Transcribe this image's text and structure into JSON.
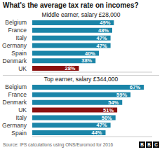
{
  "chart_data": [
    {
      "type": "bar",
      "orientation": "horizontal",
      "title": "What's the average tax rate on incomes?",
      "subtitle": "Middle earner, salary £28,000",
      "categories": [
        "Belgium",
        "France",
        "Italy",
        "Germany",
        "Spain",
        "Denmark",
        "UK"
      ],
      "values": [
        49,
        48,
        47,
        47,
        40,
        38,
        28
      ],
      "value_labels": [
        "49%",
        "48%",
        "47%",
        "47%",
        "40%",
        "38%",
        "28%"
      ],
      "colors": [
        "#1a85a8",
        "#1a85a8",
        "#1a85a8",
        "#1a85a8",
        "#1a85a8",
        "#1a85a8",
        "#8b1010"
      ],
      "xlim": [
        0,
        72
      ],
      "data_labels": true,
      "tick_labels": "y",
      "grid": false
    },
    {
      "type": "bar",
      "orientation": "horizontal",
      "subtitle": "Top earner, salary £344,000",
      "categories": [
        "Belgium",
        "France",
        "Denmark",
        "UK",
        "Italy",
        "Germany",
        "Spain"
      ],
      "values": [
        67,
        59,
        54,
        51,
        50,
        47,
        44
      ],
      "value_labels": [
        "67%",
        "59%",
        "54%",
        "51%",
        "50%",
        "47%",
        "44%"
      ],
      "colors": [
        "#1a85a8",
        "#1a85a8",
        "#1a85a8",
        "#8b1010",
        "#1a85a8",
        "#1a85a8",
        "#1a85a8"
      ],
      "xlim": [
        0,
        72
      ],
      "data_labels": true,
      "tick_labels": "y",
      "grid": false,
      "annotations": [
        "Source: IFS calculations using ONS/Euromod for 2016",
        "B",
        "B",
        "C"
      ]
    }
  ]
}
